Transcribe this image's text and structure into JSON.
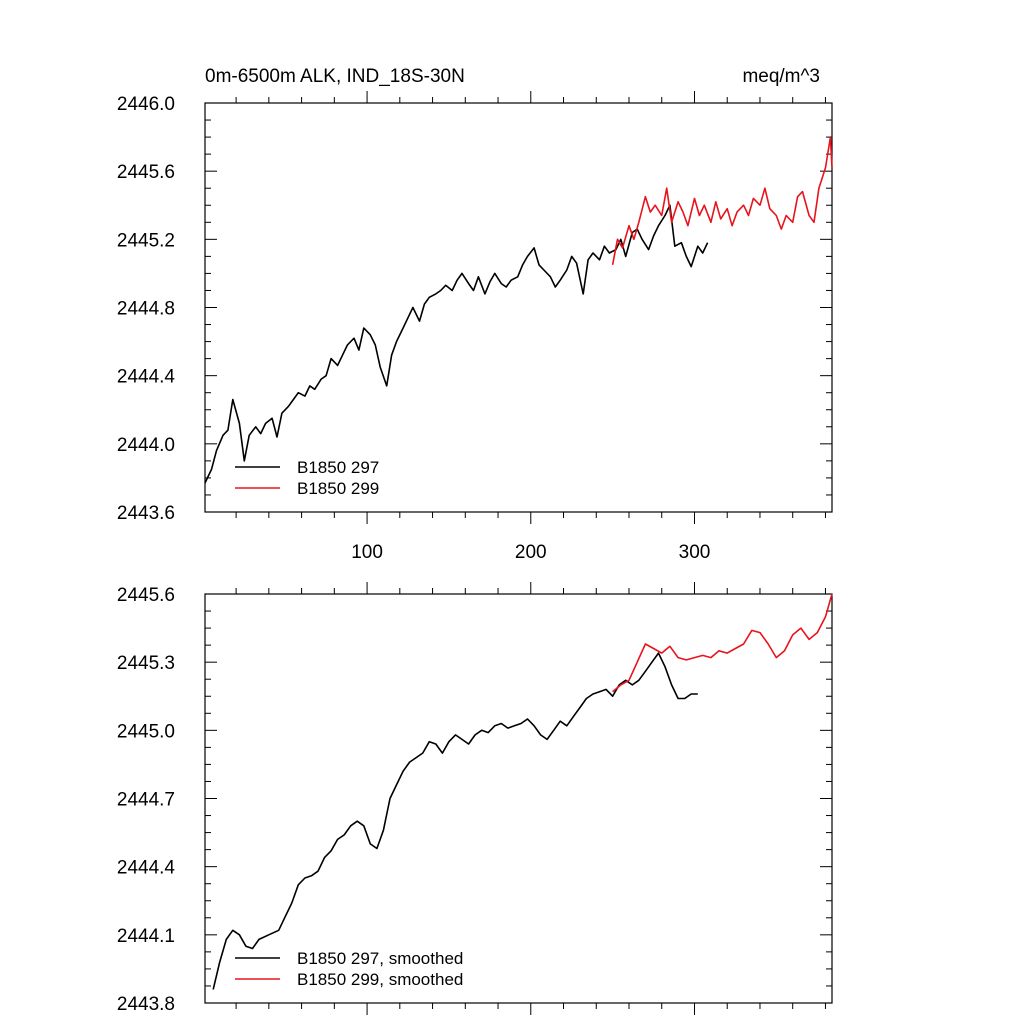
{
  "colors": {
    "series_black": "#000000",
    "series_red": "#e8141c",
    "axis": "#000000"
  },
  "chart_data": [
    {
      "type": "line",
      "title": "0m-6500m ALK, IND_18S-30N",
      "units": "meq/m^3",
      "xlim": [
        1,
        384
      ],
      "ylim": [
        2443.6,
        2446.0
      ],
      "xticks": [
        100,
        200,
        300
      ],
      "xtick_labels": [
        "100",
        "200",
        "300"
      ],
      "yticks": [
        2443.6,
        2444.0,
        2444.4,
        2444.8,
        2445.2,
        2445.6,
        2446.0
      ],
      "ytick_labels": [
        "2443.6",
        "2444.0",
        "2444.4",
        "2444.8",
        "2445.2",
        "2445.6",
        "2446.0"
      ],
      "series": [
        {
          "name": "B1850 297",
          "color": "#000000",
          "x": [
            1,
            5,
            8,
            12,
            15,
            18,
            22,
            25,
            28,
            32,
            35,
            38,
            42,
            45,
            48,
            52,
            55,
            58,
            62,
            65,
            68,
            72,
            75,
            78,
            82,
            85,
            88,
            92,
            95,
            98,
            102,
            105,
            108,
            112,
            115,
            118,
            122,
            125,
            128,
            132,
            135,
            138,
            142,
            145,
            148,
            152,
            155,
            158,
            162,
            165,
            168,
            172,
            175,
            178,
            182,
            185,
            188,
            192,
            195,
            198,
            202,
            205,
            208,
            212,
            215,
            218,
            222,
            225,
            228,
            232,
            235,
            238,
            242,
            245,
            248,
            252,
            255,
            258,
            262,
            265,
            268,
            272,
            275,
            278,
            282,
            285,
            288,
            292,
            295,
            298,
            302,
            305,
            308
          ],
          "values": [
            2443.77,
            2443.85,
            2443.96,
            2444.05,
            2444.08,
            2444.26,
            2444.12,
            2443.9,
            2444.05,
            2444.1,
            2444.06,
            2444.12,
            2444.15,
            2444.04,
            2444.18,
            2444.22,
            2444.26,
            2444.3,
            2444.28,
            2444.34,
            2444.32,
            2444.38,
            2444.4,
            2444.5,
            2444.46,
            2444.52,
            2444.58,
            2444.62,
            2444.55,
            2444.68,
            2444.64,
            2444.58,
            2444.45,
            2444.34,
            2444.52,
            2444.6,
            2444.68,
            2444.74,
            2444.8,
            2444.72,
            2444.82,
            2444.86,
            2444.88,
            2444.9,
            2444.93,
            2444.9,
            2444.96,
            2445.0,
            2444.94,
            2444.9,
            2444.98,
            2444.88,
            2444.95,
            2445.0,
            2444.94,
            2444.92,
            2444.96,
            2444.98,
            2445.05,
            2445.1,
            2445.15,
            2445.05,
            2445.02,
            2444.98,
            2444.92,
            2444.96,
            2445.02,
            2445.1,
            2445.06,
            2444.88,
            2445.08,
            2445.12,
            2445.08,
            2445.16,
            2445.12,
            2445.14,
            2445.2,
            2445.1,
            2445.24,
            2445.26,
            2445.2,
            2445.14,
            2445.22,
            2445.28,
            2445.34,
            2445.4,
            2445.16,
            2445.18,
            2445.1,
            2445.04,
            2445.16,
            2445.12,
            2445.18
          ]
        },
        {
          "name": "B1850 299",
          "color": "#e8141c",
          "x": [
            250,
            253,
            256,
            260,
            263,
            266,
            270,
            273,
            276,
            280,
            283,
            286,
            290,
            293,
            296,
            300,
            303,
            306,
            310,
            313,
            316,
            320,
            323,
            326,
            330,
            333,
            336,
            340,
            343,
            346,
            350,
            353,
            356,
            360,
            363,
            366,
            370,
            373,
            376,
            380,
            383,
            384
          ],
          "values": [
            2445.05,
            2445.2,
            2445.15,
            2445.28,
            2445.2,
            2445.3,
            2445.45,
            2445.36,
            2445.4,
            2445.34,
            2445.5,
            2445.3,
            2445.42,
            2445.36,
            2445.28,
            2445.44,
            2445.34,
            2445.4,
            2445.3,
            2445.42,
            2445.32,
            2445.38,
            2445.28,
            2445.36,
            2445.4,
            2445.34,
            2445.44,
            2445.4,
            2445.5,
            2445.38,
            2445.34,
            2445.26,
            2445.34,
            2445.3,
            2445.45,
            2445.48,
            2445.34,
            2445.3,
            2445.5,
            2445.62,
            2445.8,
            2445.62
          ]
        }
      ],
      "legend": {
        "position": "lower-left"
      }
    },
    {
      "type": "line",
      "title": "",
      "xlim": [
        1,
        384
      ],
      "ylim": [
        2443.8,
        2445.6
      ],
      "xticks": [
        100,
        200,
        300
      ],
      "yticks": [
        2443.8,
        2444.1,
        2444.4,
        2444.7,
        2445.0,
        2445.3,
        2445.6
      ],
      "ytick_labels": [
        "2443.8",
        "2444.1",
        "2444.4",
        "2444.7",
        "2445.0",
        "2445.3",
        "2445.6"
      ],
      "series": [
        {
          "name": "B1850 297, smoothed",
          "color": "#000000",
          "x": [
            6,
            10,
            14,
            18,
            22,
            26,
            30,
            34,
            40,
            46,
            50,
            54,
            58,
            62,
            66,
            70,
            74,
            78,
            82,
            86,
            90,
            94,
            98,
            102,
            106,
            110,
            114,
            118,
            122,
            126,
            130,
            134,
            138,
            142,
            146,
            150,
            154,
            158,
            162,
            166,
            170,
            174,
            178,
            182,
            186,
            190,
            194,
            198,
            202,
            206,
            210,
            214,
            218,
            222,
            226,
            230,
            234,
            238,
            242,
            246,
            250,
            254,
            258,
            262,
            266,
            270,
            274,
            278,
            282,
            286,
            290,
            294,
            298,
            302
          ],
          "values": [
            2443.86,
            2443.98,
            2444.08,
            2444.12,
            2444.1,
            2444.05,
            2444.04,
            2444.08,
            2444.1,
            2444.12,
            2444.18,
            2444.24,
            2444.32,
            2444.35,
            2444.36,
            2444.38,
            2444.44,
            2444.47,
            2444.52,
            2444.54,
            2444.58,
            2444.6,
            2444.58,
            2444.5,
            2444.48,
            2444.56,
            2444.7,
            2444.76,
            2444.82,
            2444.86,
            2444.88,
            2444.9,
            2444.95,
            2444.94,
            2444.9,
            2444.95,
            2444.98,
            2444.96,
            2444.94,
            2444.98,
            2445.0,
            2444.99,
            2445.02,
            2445.03,
            2445.01,
            2445.02,
            2445.03,
            2445.05,
            2445.02,
            2444.98,
            2444.96,
            2445.0,
            2445.04,
            2445.02,
            2445.06,
            2445.1,
            2445.14,
            2445.16,
            2445.17,
            2445.18,
            2445.15,
            2445.2,
            2445.22,
            2445.2,
            2445.22,
            2445.26,
            2445.3,
            2445.34,
            2445.28,
            2445.2,
            2445.14,
            2445.14,
            2445.16,
            2445.16
          ]
        },
        {
          "name": "B1850 299, smoothed",
          "color": "#e8141c",
          "x": [
            250,
            255,
            260,
            265,
            270,
            275,
            280,
            285,
            290,
            295,
            300,
            305,
            310,
            315,
            320,
            325,
            330,
            335,
            340,
            345,
            350,
            355,
            360,
            365,
            370,
            375,
            380,
            384
          ],
          "values": [
            2445.17,
            2445.2,
            2445.22,
            2445.3,
            2445.38,
            2445.36,
            2445.34,
            2445.37,
            2445.32,
            2445.31,
            2445.32,
            2445.33,
            2445.32,
            2445.35,
            2445.34,
            2445.36,
            2445.38,
            2445.44,
            2445.43,
            2445.38,
            2445.32,
            2445.35,
            2445.42,
            2445.45,
            2445.4,
            2445.43,
            2445.5,
            2445.6
          ]
        }
      ],
      "legend": {
        "position": "lower-left"
      }
    }
  ]
}
